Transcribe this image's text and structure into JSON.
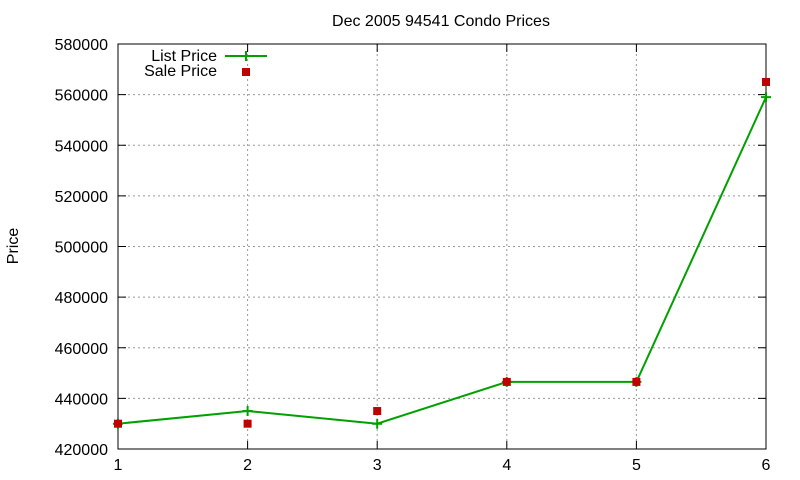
{
  "chart_data": {
    "type": "line",
    "title": "Dec 2005 94541 Condo Prices",
    "xlabel": "",
    "ylabel": "Price",
    "x": [
      1,
      2,
      3,
      4,
      5,
      6
    ],
    "xlim": [
      1,
      6
    ],
    "ylim": [
      420000,
      580000
    ],
    "xticks": [
      "1",
      "2",
      "3",
      "4",
      "5",
      "6"
    ],
    "yticks": [
      "420000",
      "440000",
      "460000",
      "480000",
      "500000",
      "520000",
      "540000",
      "560000",
      "580000"
    ],
    "grid": true,
    "legend_position": "top-left",
    "series": [
      {
        "name": "List Price",
        "type": "line",
        "marker": "plus",
        "color": "#00a000",
        "values": [
          430000,
          435000,
          430000,
          446500,
          446500,
          559000
        ]
      },
      {
        "name": "Sale Price",
        "type": "scatter",
        "marker": "square",
        "color": "#c00000",
        "values": [
          430000,
          430000,
          435000,
          446500,
          446500,
          565000
        ]
      }
    ]
  }
}
